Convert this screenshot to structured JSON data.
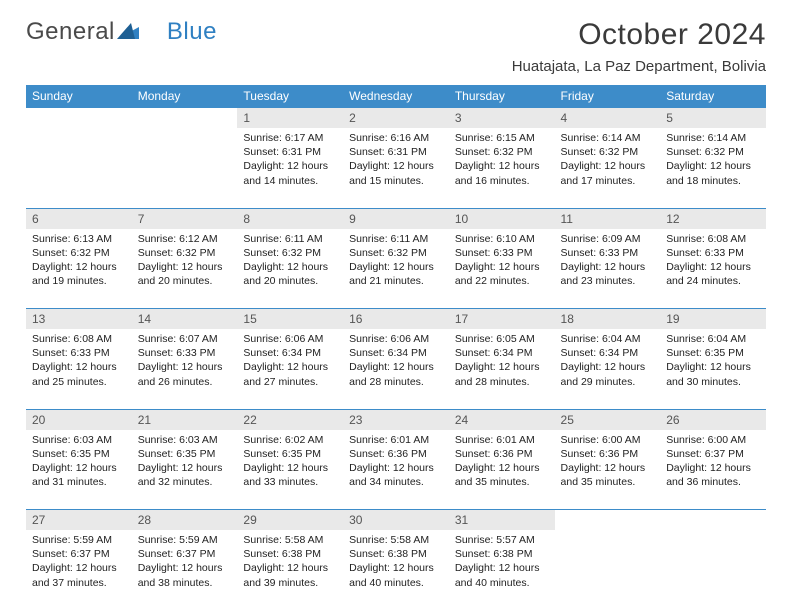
{
  "logo": {
    "text1": "General",
    "text2": "Blue"
  },
  "title": "October 2024",
  "subtitle": "Huatajata, La Paz Department, Bolivia",
  "colors": {
    "header_bg": "#3d8cc9",
    "header_fg": "#ffffff",
    "daynum_bg": "#e9e9e9",
    "rule": "#3d8cc9",
    "text": "#222222",
    "page_bg": "#ffffff",
    "logo_gray": "#4a4a4a",
    "logo_blue": "#2f80c2"
  },
  "weekdays": [
    "Sunday",
    "Monday",
    "Tuesday",
    "Wednesday",
    "Thursday",
    "Friday",
    "Saturday"
  ],
  "first_weekday_index": 2,
  "days": [
    {
      "n": 1,
      "sunrise": "6:17 AM",
      "sunset": "6:31 PM",
      "daylight": "12 hours and 14 minutes."
    },
    {
      "n": 2,
      "sunrise": "6:16 AM",
      "sunset": "6:31 PM",
      "daylight": "12 hours and 15 minutes."
    },
    {
      "n": 3,
      "sunrise": "6:15 AM",
      "sunset": "6:32 PM",
      "daylight": "12 hours and 16 minutes."
    },
    {
      "n": 4,
      "sunrise": "6:14 AM",
      "sunset": "6:32 PM",
      "daylight": "12 hours and 17 minutes."
    },
    {
      "n": 5,
      "sunrise": "6:14 AM",
      "sunset": "6:32 PM",
      "daylight": "12 hours and 18 minutes."
    },
    {
      "n": 6,
      "sunrise": "6:13 AM",
      "sunset": "6:32 PM",
      "daylight": "12 hours and 19 minutes."
    },
    {
      "n": 7,
      "sunrise": "6:12 AM",
      "sunset": "6:32 PM",
      "daylight": "12 hours and 20 minutes."
    },
    {
      "n": 8,
      "sunrise": "6:11 AM",
      "sunset": "6:32 PM",
      "daylight": "12 hours and 20 minutes."
    },
    {
      "n": 9,
      "sunrise": "6:11 AM",
      "sunset": "6:32 PM",
      "daylight": "12 hours and 21 minutes."
    },
    {
      "n": 10,
      "sunrise": "6:10 AM",
      "sunset": "6:33 PM",
      "daylight": "12 hours and 22 minutes."
    },
    {
      "n": 11,
      "sunrise": "6:09 AM",
      "sunset": "6:33 PM",
      "daylight": "12 hours and 23 minutes."
    },
    {
      "n": 12,
      "sunrise": "6:08 AM",
      "sunset": "6:33 PM",
      "daylight": "12 hours and 24 minutes."
    },
    {
      "n": 13,
      "sunrise": "6:08 AM",
      "sunset": "6:33 PM",
      "daylight": "12 hours and 25 minutes."
    },
    {
      "n": 14,
      "sunrise": "6:07 AM",
      "sunset": "6:33 PM",
      "daylight": "12 hours and 26 minutes."
    },
    {
      "n": 15,
      "sunrise": "6:06 AM",
      "sunset": "6:34 PM",
      "daylight": "12 hours and 27 minutes."
    },
    {
      "n": 16,
      "sunrise": "6:06 AM",
      "sunset": "6:34 PM",
      "daylight": "12 hours and 28 minutes."
    },
    {
      "n": 17,
      "sunrise": "6:05 AM",
      "sunset": "6:34 PM",
      "daylight": "12 hours and 28 minutes."
    },
    {
      "n": 18,
      "sunrise": "6:04 AM",
      "sunset": "6:34 PM",
      "daylight": "12 hours and 29 minutes."
    },
    {
      "n": 19,
      "sunrise": "6:04 AM",
      "sunset": "6:35 PM",
      "daylight": "12 hours and 30 minutes."
    },
    {
      "n": 20,
      "sunrise": "6:03 AM",
      "sunset": "6:35 PM",
      "daylight": "12 hours and 31 minutes."
    },
    {
      "n": 21,
      "sunrise": "6:03 AM",
      "sunset": "6:35 PM",
      "daylight": "12 hours and 32 minutes."
    },
    {
      "n": 22,
      "sunrise": "6:02 AM",
      "sunset": "6:35 PM",
      "daylight": "12 hours and 33 minutes."
    },
    {
      "n": 23,
      "sunrise": "6:01 AM",
      "sunset": "6:36 PM",
      "daylight": "12 hours and 34 minutes."
    },
    {
      "n": 24,
      "sunrise": "6:01 AM",
      "sunset": "6:36 PM",
      "daylight": "12 hours and 35 minutes."
    },
    {
      "n": 25,
      "sunrise": "6:00 AM",
      "sunset": "6:36 PM",
      "daylight": "12 hours and 35 minutes."
    },
    {
      "n": 26,
      "sunrise": "6:00 AM",
      "sunset": "6:37 PM",
      "daylight": "12 hours and 36 minutes."
    },
    {
      "n": 27,
      "sunrise": "5:59 AM",
      "sunset": "6:37 PM",
      "daylight": "12 hours and 37 minutes."
    },
    {
      "n": 28,
      "sunrise": "5:59 AM",
      "sunset": "6:37 PM",
      "daylight": "12 hours and 38 minutes."
    },
    {
      "n": 29,
      "sunrise": "5:58 AM",
      "sunset": "6:38 PM",
      "daylight": "12 hours and 39 minutes."
    },
    {
      "n": 30,
      "sunrise": "5:58 AM",
      "sunset": "6:38 PM",
      "daylight": "12 hours and 40 minutes."
    },
    {
      "n": 31,
      "sunrise": "5:57 AM",
      "sunset": "6:38 PM",
      "daylight": "12 hours and 40 minutes."
    }
  ],
  "labels": {
    "sunrise": "Sunrise:",
    "sunset": "Sunset:",
    "daylight": "Daylight:"
  }
}
